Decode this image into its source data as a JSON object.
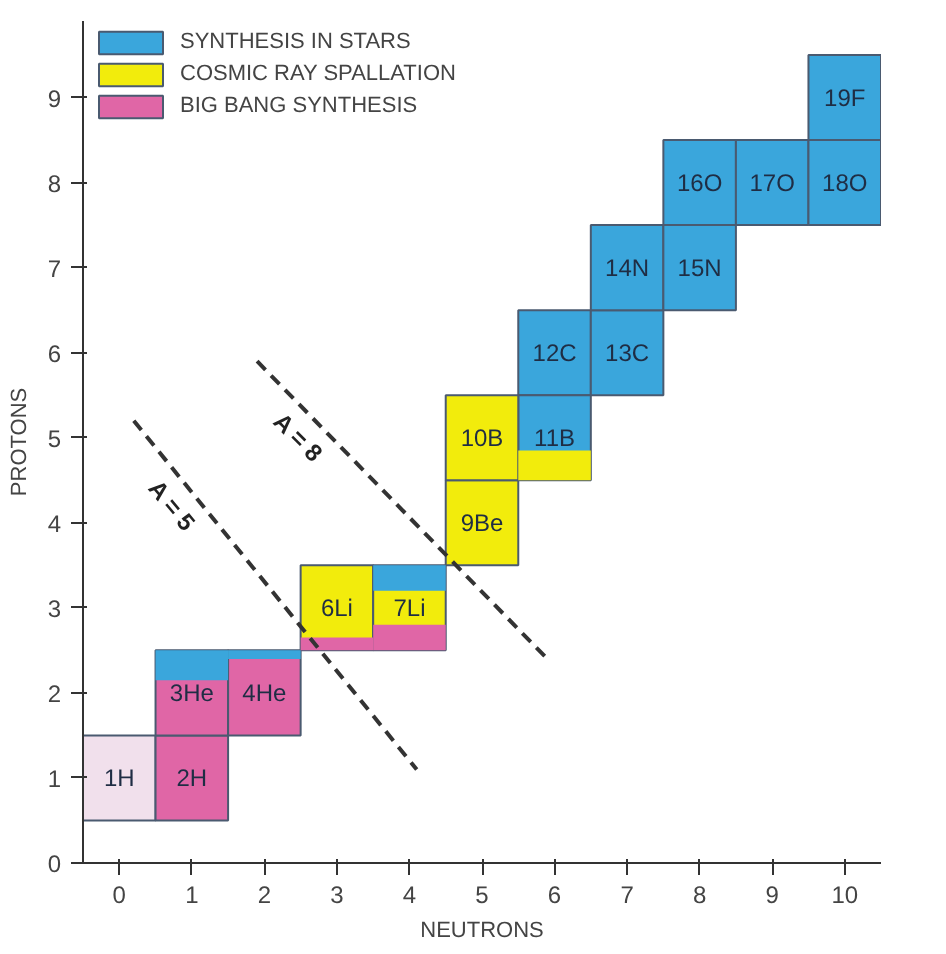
{
  "chart_data": {
    "type": "scatter",
    "xlabel": "NEUTRONS",
    "ylabel": "PROTONS",
    "xlim": [
      -0.5,
      10.5
    ],
    "ylim": [
      0,
      9.9
    ],
    "xticks": [
      0,
      1,
      2,
      3,
      4,
      5,
      6,
      7,
      8,
      9,
      10
    ],
    "yticks": [
      0,
      1,
      2,
      3,
      4,
      5,
      6,
      7,
      8,
      9
    ],
    "grid": false,
    "legend": "top",
    "series": [
      {
        "name": "SYNTHESIS IN STARS",
        "color": "#3aa6dc",
        "marker": "square",
        "x": [
          6,
          6,
          7,
          7,
          8,
          8,
          9,
          10,
          10
        ],
        "values": [
          6,
          5,
          6,
          7,
          7,
          8,
          8,
          8,
          9
        ]
      },
      {
        "name": "COSMIC RAY SPALLATION",
        "color": "#f2ec0c",
        "marker": "square",
        "x": [
          3,
          4,
          5,
          5
        ],
        "values": [
          3,
          3,
          4,
          5
        ]
      },
      {
        "name": "BIG BANG SYNTHESIS",
        "color": "#e066a6",
        "marker": "square",
        "x": [
          0,
          1,
          1,
          2
        ],
        "values": [
          1,
          1,
          2,
          2
        ],
        "colors": [
          "#f1e0ec",
          "#e066a6",
          "#e066a6",
          "#e066a6"
        ]
      },
      {
        "type": "bar",
        "color": "#3aa6dc",
        "x": [
          1,
          2,
          4
        ],
        "base": [
          2.15,
          2.4,
          3.2
        ],
        "values": [
          0.35,
          0.1,
          0.3
        ]
      },
      {
        "type": "bar",
        "color": "#e066a6",
        "x": [
          3,
          4
        ],
        "base": [
          2.5,
          2.5
        ],
        "values": [
          0.15,
          0.3
        ]
      },
      {
        "type": "bar",
        "color": "#f2ec0c",
        "x": [
          6
        ],
        "base": [
          4.5
        ],
        "values": [
          0.35
        ]
      },
      {
        "type": "line",
        "line_style": "dashed",
        "color": "#333333",
        "x": [
          0.2,
          4.1
        ],
        "values": [
          5.2,
          1.1
        ]
      },
      {
        "type": "line",
        "line_style": "dashed",
        "color": "#333333",
        "x": [
          1.9,
          5.9
        ],
        "values": [
          5.9,
          2.4
        ]
      }
    ],
    "annotations": [
      {
        "text": "1H",
        "x": 0,
        "y": 1
      },
      {
        "text": "2H",
        "x": 1,
        "y": 1
      },
      {
        "text": "3He",
        "x": 1,
        "y": 2
      },
      {
        "text": "4He",
        "x": 2,
        "y": 2
      },
      {
        "text": "6Li",
        "x": 3,
        "y": 3
      },
      {
        "text": "7Li",
        "x": 4,
        "y": 3
      },
      {
        "text": "9Be",
        "x": 5,
        "y": 4
      },
      {
        "text": "10B",
        "x": 5,
        "y": 5
      },
      {
        "text": "11B",
        "x": 6,
        "y": 5
      },
      {
        "text": "12C",
        "x": 6,
        "y": 6
      },
      {
        "text": "13C",
        "x": 7,
        "y": 6
      },
      {
        "text": "14N",
        "x": 7,
        "y": 7
      },
      {
        "text": "15N",
        "x": 8,
        "y": 7
      },
      {
        "text": "16O",
        "x": 8,
        "y": 8
      },
      {
        "text": "17O",
        "x": 9,
        "y": 8
      },
      {
        "text": "18O",
        "x": 10,
        "y": 8
      },
      {
        "text": "19F",
        "x": 10,
        "y": 9
      },
      "A = 5",
      "A = 8"
    ]
  }
}
